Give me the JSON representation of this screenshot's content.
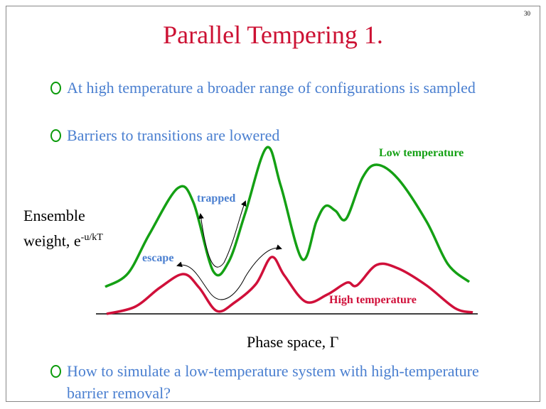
{
  "page_number": "30",
  "title": "Parallel Tempering 1.",
  "bullets": [
    "At high temperature a broader range of configurations is sampled",
    "Barriers to transitions are lowered"
  ],
  "figure": {
    "low_label": "Low temperature",
    "high_label": "High temperature",
    "trapped": "trapped",
    "escape": "escape",
    "y_label": "Ensemble weight, e",
    "y_label_exponent": "-u/kT",
    "x_label": "Phase space, Γ"
  },
  "closing_bullets": [
    "How to simulate a low-temperature system with high-temperature barrier removal?"
  ]
}
